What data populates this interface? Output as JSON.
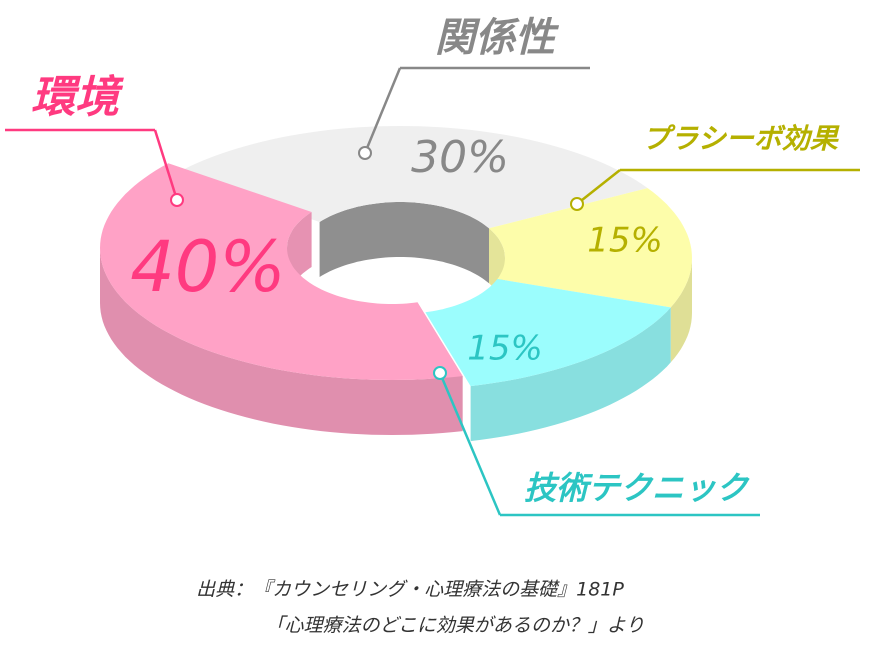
{
  "chart_data": {
    "type": "pie",
    "categories": [
      "関係性",
      "プラシーボ効果",
      "技術テクニック",
      "環境"
    ],
    "values": [
      30,
      15,
      15,
      40
    ],
    "value_labels": [
      "30%",
      "15%",
      "15%",
      "40%"
    ],
    "colors": [
      "#efefef",
      "#fdfdaa",
      "#9bfdfd",
      "#ffa2c6"
    ],
    "label_colors": [
      "#888888",
      "#b5b000",
      "#2cc5c3",
      "#ff3a80"
    ],
    "source": [
      "出典：『カウンセリング・心理療法の基礎』181P",
      "「心理療法のどこに効果があるのか？」より"
    ]
  }
}
